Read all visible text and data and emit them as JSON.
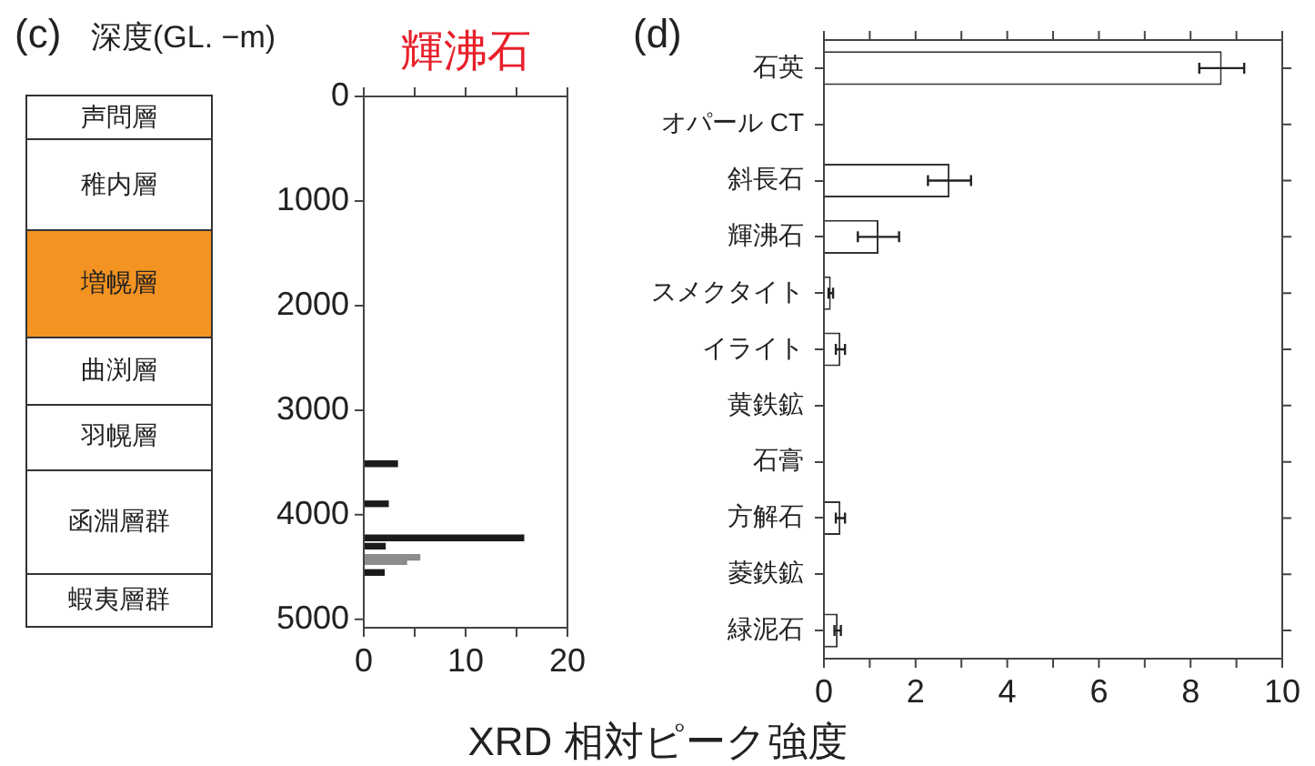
{
  "chart_data": [
    {
      "type": "other",
      "categories": [
        "声問層",
        "稚内層",
        "増幌層",
        "曲渕層",
        "羽幌層",
        "函淵層群",
        "蝦夷層群"
      ],
      "colors": [
        "#ffffff",
        "#ffffff",
        "#f39322",
        "#ffffff",
        "#ffffff",
        "#ffffff",
        "#ffffff"
      ]
    },
    {
      "type": "bar",
      "orientation": "horizontal",
      "title": "輝沸石",
      "ylabel": "深度(GL. −m)",
      "annotations": [
        "(c)"
      ],
      "x": [
        3512,
        3895,
        4221,
        4300,
        4407,
        4448,
        4552
      ],
      "values": [
        3.3,
        2.4,
        15.7,
        2.1,
        5.5,
        4.2,
        2.0
      ],
      "colors": [
        "#1a1a1a",
        "#1a1a1a",
        "#1a1a1a",
        "#1a1a1a",
        "#8c8c8c",
        "#8c8c8c",
        "#1a1a1a"
      ],
      "xlim": [
        0,
        20
      ],
      "xticks": [
        0,
        {
          "value": 5,
          "label": null
        },
        10,
        {
          "value": 15,
          "label": null
        },
        20
      ],
      "ylim": [
        5080,
        0
      ],
      "yticks": [
        0,
        1000,
        2000,
        3000,
        4000,
        5000
      ]
    },
    {
      "type": "bar",
      "orientation": "horizontal",
      "annotations": [
        "(d)"
      ],
      "xlabel": "XRD 相対ピーク強度",
      "categories": [
        "石英",
        "オパール CT",
        "斜長石",
        "輝沸石",
        "スメクタイト",
        "イライト",
        "黄鉄鉱",
        "石膏",
        "方解石",
        "菱鉄鉱",
        "緑泥石"
      ],
      "values": [
        8.68,
        0,
        2.74,
        1.19,
        0.15,
        0.36,
        0,
        0,
        0.36,
        0,
        0.3
      ],
      "errors": [
        0.49,
        null,
        0.47,
        0.45,
        0.05,
        0.1,
        null,
        null,
        0.1,
        null,
        0.07
      ],
      "color": "#ffffff",
      "xlim": [
        0,
        10
      ],
      "xticks": [
        0,
        {
          "value": 1,
          "label": null
        },
        2,
        {
          "value": 3,
          "label": null
        },
        4,
        {
          "value": 5,
          "label": null
        },
        6,
        {
          "value": 7,
          "label": null
        },
        8,
        {
          "value": 9,
          "label": null
        },
        10
      ]
    }
  ]
}
